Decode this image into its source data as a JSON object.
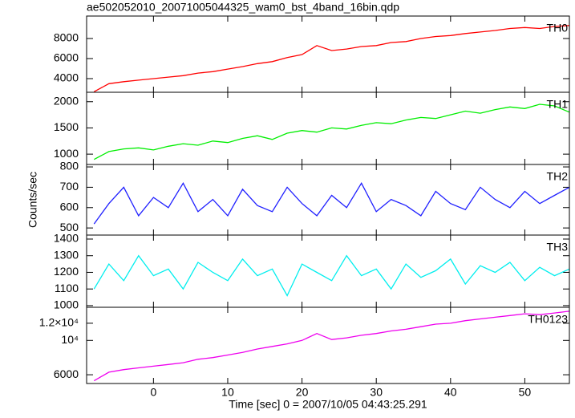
{
  "chart_data": [
    {
      "type": "line",
      "title": "ae502052010_20071005044325_wam0_bst_4band_16bin.qdp",
      "panel_label": "TH0",
      "x": [
        -8,
        -6,
        -4,
        -2,
        0,
        2,
        4,
        6,
        8,
        10,
        12,
        14,
        16,
        18,
        20,
        22,
        24,
        26,
        28,
        30,
        32,
        34,
        36,
        38,
        40,
        42,
        44,
        46,
        48,
        50,
        52,
        54,
        56
      ],
      "series": [
        {
          "color": "#ff0000",
          "values": [
            2700,
            3500,
            3700,
            3850,
            4000,
            4150,
            4300,
            4550,
            4700,
            4950,
            5200,
            5500,
            5700,
            6100,
            6400,
            7300,
            6800,
            6950,
            7200,
            7300,
            7600,
            7700,
            8000,
            8200,
            8300,
            8500,
            8650,
            8800,
            9000,
            9100,
            9000,
            9200,
            9300
          ]
        }
      ],
      "xlim": [
        -9,
        56
      ],
      "xticks": [
        0,
        10,
        20,
        30,
        40,
        50
      ],
      "ylim": [
        2640,
        10240
      ],
      "yticks": [
        4000,
        6000,
        8000
      ]
    },
    {
      "type": "line",
      "panel_label": "TH1",
      "x": [
        -8,
        -6,
        -4,
        -2,
        0,
        2,
        4,
        6,
        8,
        10,
        12,
        14,
        16,
        18,
        20,
        22,
        24,
        26,
        28,
        30,
        32,
        34,
        36,
        38,
        40,
        42,
        44,
        46,
        48,
        50,
        52,
        54,
        56
      ],
      "series": [
        {
          "color": "#00ee00",
          "values": [
            900,
            1050,
            1100,
            1120,
            1080,
            1150,
            1200,
            1170,
            1250,
            1220,
            1300,
            1350,
            1280,
            1400,
            1450,
            1420,
            1500,
            1480,
            1550,
            1600,
            1580,
            1650,
            1700,
            1680,
            1750,
            1820,
            1780,
            1850,
            1900,
            1870,
            1950,
            1920,
            1800
          ]
        }
      ],
      "xlim": [
        -9,
        56
      ],
      "xticks": [
        0,
        10,
        20,
        30,
        40,
        50
      ],
      "ylim": [
        803,
        2180
      ],
      "yticks": [
        1000,
        1500,
        2000
      ]
    },
    {
      "type": "line",
      "panel_label": "TH2",
      "ylabel": "Counts/sec",
      "x": [
        -8,
        -6,
        -4,
        -2,
        0,
        2,
        4,
        6,
        8,
        10,
        12,
        14,
        16,
        18,
        20,
        22,
        24,
        26,
        28,
        30,
        32,
        34,
        36,
        38,
        40,
        42,
        44,
        46,
        48,
        50,
        52,
        54,
        56
      ],
      "series": [
        {
          "color": "#2020ff",
          "values": [
            520,
            620,
            700,
            560,
            650,
            600,
            720,
            580,
            640,
            560,
            690,
            610,
            580,
            700,
            620,
            560,
            660,
            600,
            720,
            580,
            640,
            610,
            560,
            680,
            620,
            590,
            700,
            640,
            600,
            680,
            620,
            660,
            700
          ]
        }
      ],
      "xlim": [
        -9,
        56
      ],
      "xticks": [
        0,
        10,
        20,
        30,
        40,
        50
      ],
      "ylim": [
        465,
        812
      ],
      "yticks": [
        500,
        600,
        700,
        800
      ]
    },
    {
      "type": "line",
      "panel_label": "TH3",
      "x": [
        -8,
        -6,
        -4,
        -2,
        0,
        2,
        4,
        6,
        8,
        10,
        12,
        14,
        16,
        18,
        20,
        22,
        24,
        26,
        28,
        30,
        32,
        34,
        36,
        38,
        40,
        42,
        44,
        46,
        48,
        50,
        52,
        54,
        56
      ],
      "series": [
        {
          "color": "#00eeee",
          "values": [
            1100,
            1250,
            1150,
            1300,
            1180,
            1220,
            1100,
            1260,
            1200,
            1150,
            1280,
            1180,
            1220,
            1060,
            1250,
            1200,
            1150,
            1300,
            1180,
            1220,
            1100,
            1250,
            1170,
            1210,
            1280,
            1130,
            1240,
            1200,
            1260,
            1150,
            1230,
            1180,
            1220
          ]
        }
      ],
      "xlim": [
        -9,
        56
      ],
      "xticks": [
        0,
        10,
        20,
        30,
        40,
        50
      ],
      "ylim": [
        990,
        1424
      ],
      "yticks": [
        1000,
        1100,
        1200,
        1300,
        1400
      ]
    },
    {
      "type": "line",
      "panel_label": "TH0123",
      "xlabel": "Time [sec] 0 = 2007/10/05 04:43:25.291",
      "x": [
        -8,
        -6,
        -4,
        -2,
        0,
        2,
        4,
        6,
        8,
        10,
        12,
        14,
        16,
        18,
        20,
        22,
        24,
        26,
        28,
        30,
        32,
        34,
        36,
        38,
        40,
        42,
        44,
        46,
        48,
        50,
        52,
        54,
        56
      ],
      "series": [
        {
          "color": "#ee00ee",
          "values": [
            5300,
            6300,
            6600,
            6800,
            7000,
            7200,
            7400,
            7800,
            8000,
            8300,
            8600,
            9000,
            9300,
            9600,
            10000,
            10800,
            10100,
            10300,
            10600,
            10800,
            11100,
            11300,
            11600,
            11900,
            12000,
            12300,
            12500,
            12700,
            12900,
            13100,
            13000,
            13200,
            13400
          ]
        }
      ],
      "xlim": [
        -9,
        56
      ],
      "xticks": [
        0,
        10,
        20,
        30,
        40,
        50
      ],
      "ylim": [
        4980,
        13860
      ],
      "yticks": [
        6000,
        {
          "value": 10000,
          "label": "10⁴"
        },
        {
          "value": 12000,
          "label": "1.2×10⁴"
        }
      ]
    }
  ]
}
